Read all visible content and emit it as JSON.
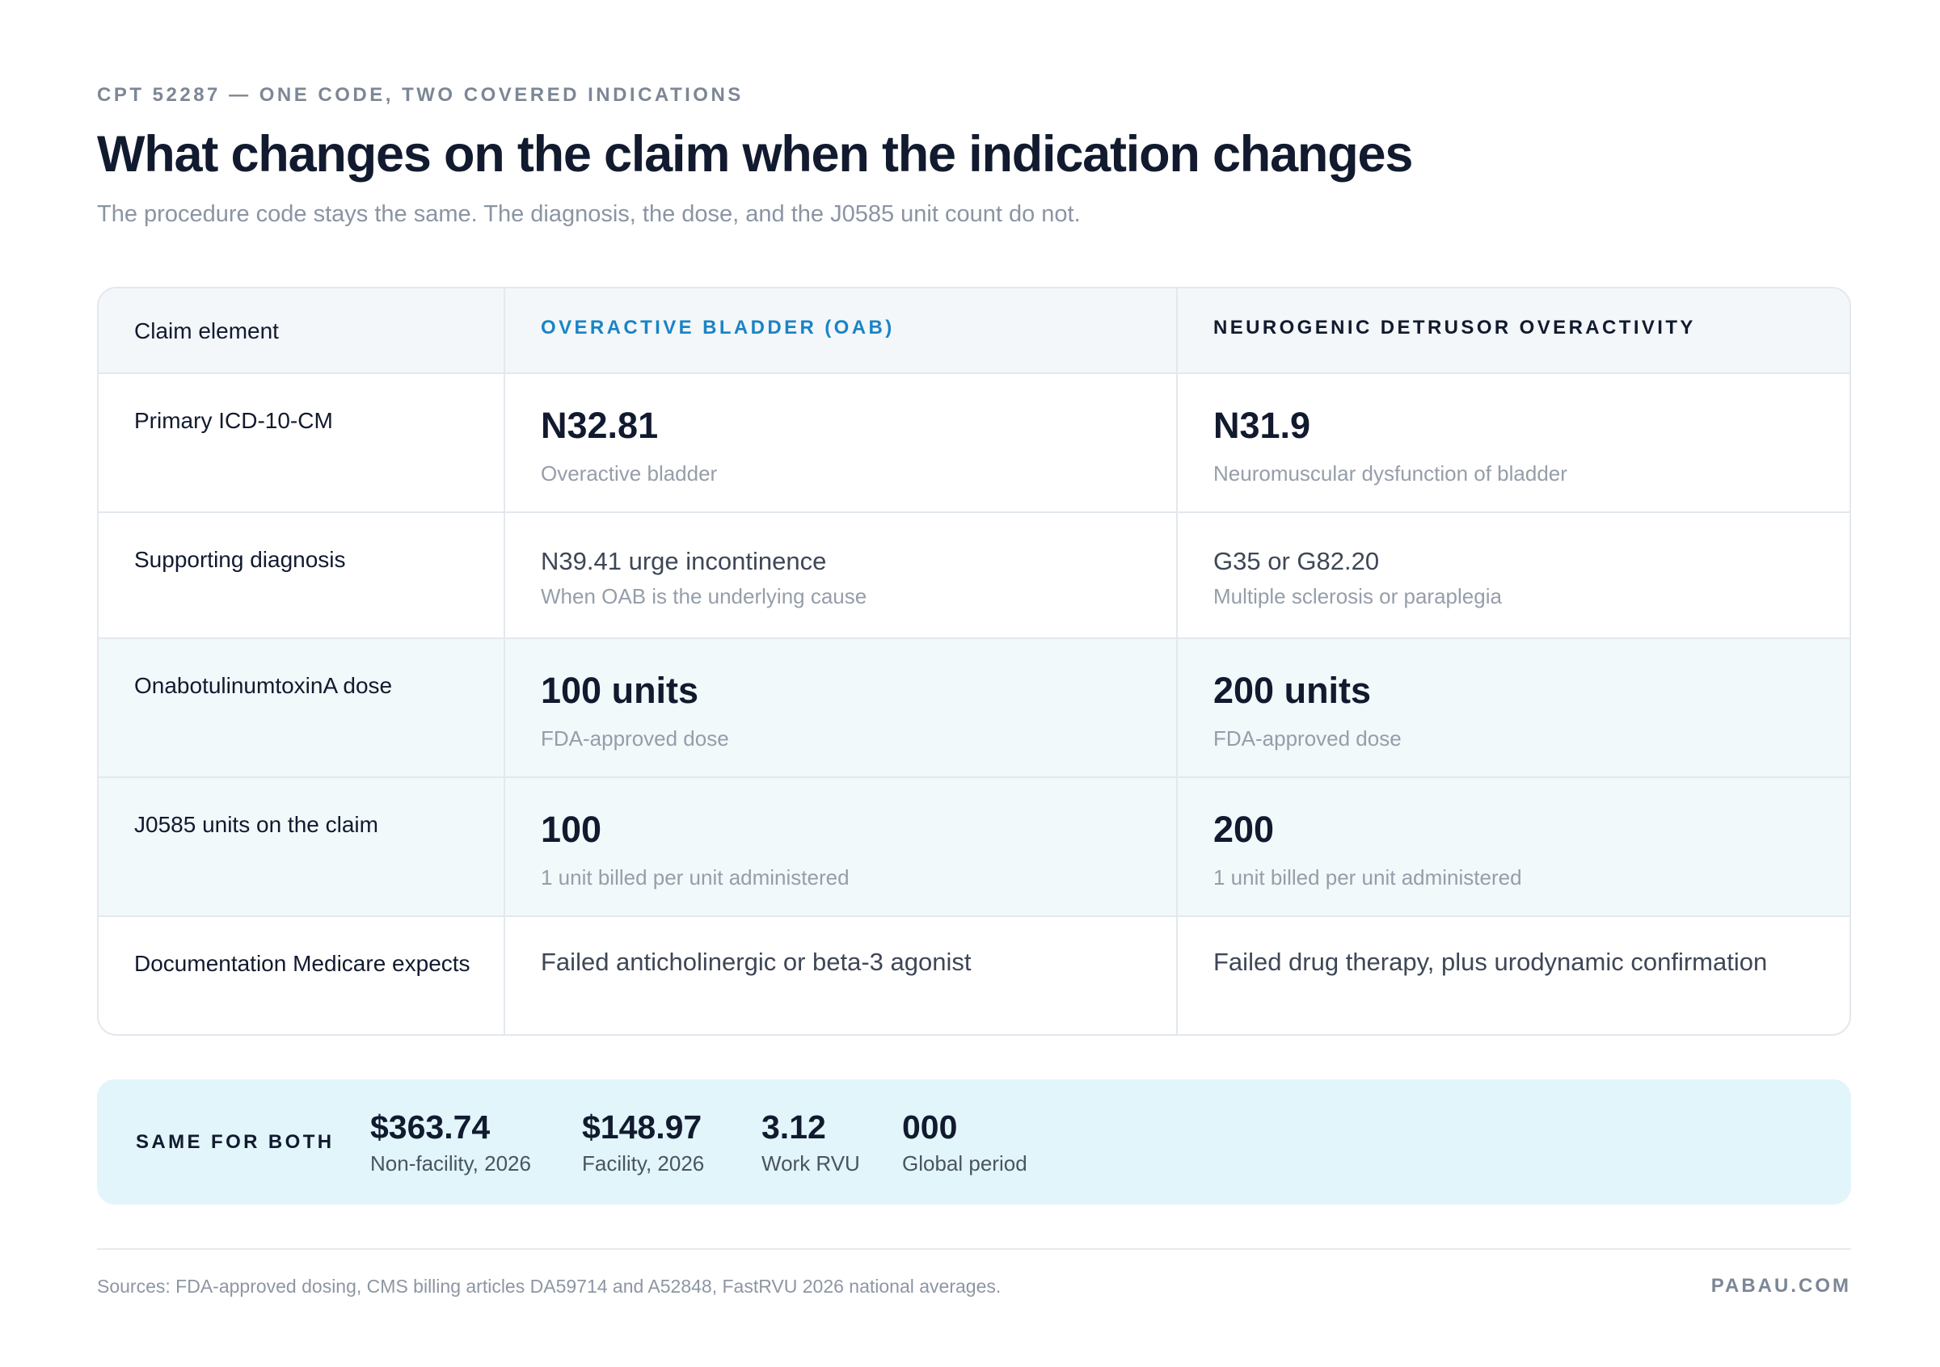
{
  "header": {
    "eyebrow": "CPT 52287 — ONE CODE, TWO COVERED INDICATIONS",
    "title": "What changes on the claim when the indication changes",
    "subtitle": "The procedure code stays the same. The diagnosis, the dose, and the J0585 unit count do not."
  },
  "table": {
    "columns": {
      "label": "Claim element",
      "oab": "OVERACTIVE BLADDER (OAB)",
      "ndo": "NEUROGENIC DETRUSOR OVERACTIVITY"
    },
    "rows": [
      {
        "label": "Primary ICD-10-CM",
        "oab": {
          "main": "N32.81",
          "sub": "Overactive bladder"
        },
        "ndo": {
          "main": "N31.9",
          "sub": "Neuromuscular dysfunction of bladder"
        }
      },
      {
        "label": "Supporting diagnosis",
        "oab": {
          "main": "N39.41 urge incontinence",
          "sub": "When OAB is the underlying cause"
        },
        "ndo": {
          "main": "G35 or G82.20",
          "sub": "Multiple sclerosis or paraplegia"
        }
      },
      {
        "label": "OnabotulinumtoxinA dose",
        "oab": {
          "main": "100 units",
          "sub": "FDA-approved dose"
        },
        "ndo": {
          "main": "200 units",
          "sub": "FDA-approved dose"
        }
      },
      {
        "label": "J0585 units on the claim",
        "oab": {
          "main": "100",
          "sub": "1 unit billed per unit administered"
        },
        "ndo": {
          "main": "200",
          "sub": "1 unit billed per unit administered"
        }
      },
      {
        "label": "Documentation Medicare expects",
        "oab": {
          "main": "Failed anticholinergic or beta-3 agonist"
        },
        "ndo": {
          "main": "Failed drug therapy, plus urodynamic confirmation"
        }
      }
    ]
  },
  "summary": {
    "label": "SAME FOR BOTH",
    "stats": [
      {
        "value": "$363.74",
        "label": "Non-facility, 2026"
      },
      {
        "value": "$148.97",
        "label": "Facility, 2026"
      },
      {
        "value": "3.12",
        "label": "Work RVU"
      },
      {
        "value": "000",
        "label": "Global period"
      }
    ]
  },
  "footer": {
    "sources": "Sources: FDA-approved dosing, CMS billing articles DA59714 and A52848, FastRVU 2026 national averages.",
    "brand": "PABAU.COM"
  },
  "colors": {
    "accent": "#1a84c6",
    "heading": "#111a2e",
    "muted": "#8a94a3",
    "summary_bg": "#e2f5fa",
    "row_tint": "#f2f9fb",
    "border": "#e3e8ee"
  }
}
